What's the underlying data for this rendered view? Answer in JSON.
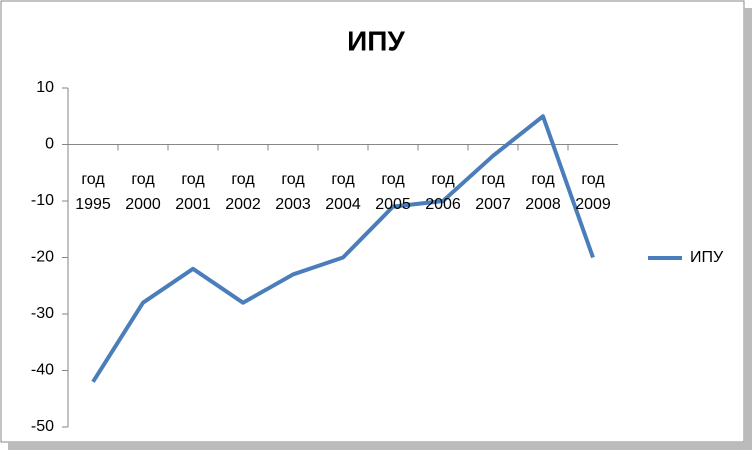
{
  "chart_data": {
    "type": "line",
    "title": "ИПУ",
    "categories": [
      "год 1995",
      "год 2000",
      "год 2001",
      "год 2002",
      "год 2003",
      "год 2004",
      "год 2005",
      "год 2006",
      "год 2007",
      "год 2008",
      "год 2009"
    ],
    "series": [
      {
        "name": "ИПУ",
        "color": "#4a7ebb",
        "values": [
          -42,
          -28,
          -22,
          -28,
          -23,
          -20,
          -11,
          -10,
          -2,
          5,
          -20
        ]
      }
    ],
    "ylim": [
      -50,
      10
    ],
    "yticks": [
      -50,
      -40,
      -30,
      -20,
      -10,
      0,
      10
    ],
    "grid": false,
    "legend": "right"
  }
}
